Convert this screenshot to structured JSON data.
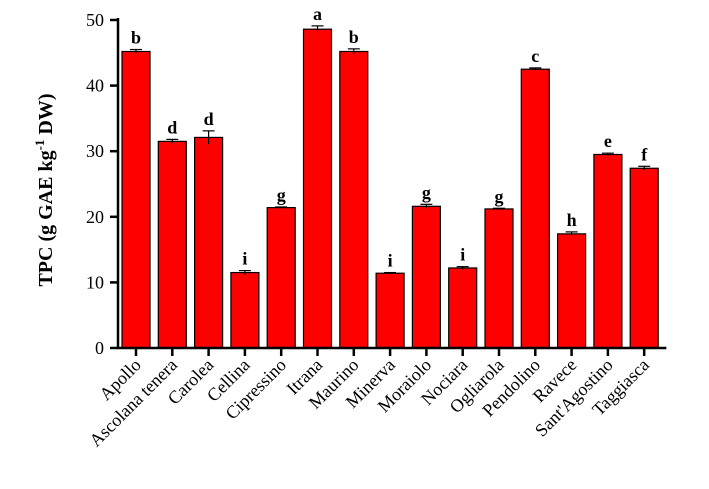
{
  "chart_data": {
    "type": "bar",
    "title": "",
    "xlabel": "",
    "ylabel": {
      "prefix": "TPC (g GAE kg",
      "superscript": "-1",
      "suffix": " DW)"
    },
    "ylim": [
      0,
      50
    ],
    "yticks": [
      "0",
      "10",
      "20",
      "30",
      "40",
      "50"
    ],
    "categories": [
      "Apollo",
      "Ascolana tenera",
      "Carolea",
      "Cellina",
      "Cipressino",
      "Itrana",
      "Maurino",
      "Minerva",
      "Moraiolo",
      "Nociara",
      "Ogliarola",
      "Pendolino",
      "Ravece",
      "Sant'Agostino",
      "Taggiasca"
    ],
    "values": [
      45.2,
      31.5,
      32.1,
      11.5,
      21.4,
      48.6,
      45.2,
      11.4,
      21.6,
      12.2,
      21.2,
      42.5,
      17.4,
      29.5,
      27.4
    ],
    "errors": [
      0.3,
      0.3,
      1.0,
      0.3,
      0.1,
      0.5,
      0.4,
      0.1,
      0.3,
      0.2,
      0.1,
      0.2,
      0.3,
      0.2,
      0.3
    ],
    "significance": [
      "b",
      "d",
      "d",
      "i",
      "g",
      "a",
      "b",
      "i",
      "g",
      "i",
      "g",
      "c",
      "h",
      "e",
      "f"
    ],
    "bar_color": "#ff0000",
    "bar_edge_color": "#000000",
    "grid": false,
    "legend": "none"
  }
}
